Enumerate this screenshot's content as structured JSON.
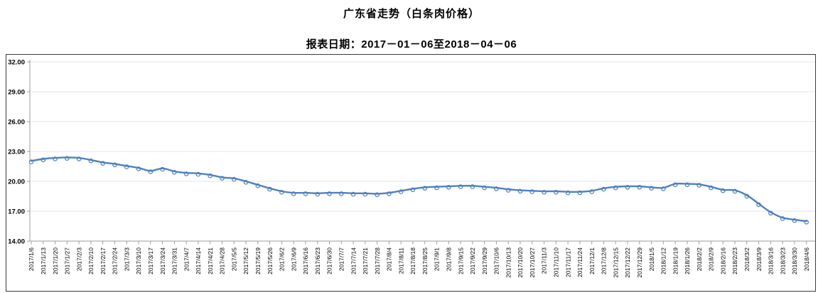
{
  "title": "广东省走势（白条肉价格）",
  "subtitle": "报表日期：2017－01－06至2018－04－06",
  "colors": {
    "line": "#4f81bd",
    "marker_fill": "#ffffff",
    "grid": "#dde6f1",
    "axis": "#9e9e9e",
    "border": "#3c3c3c",
    "text": "#000000"
  },
  "chart_data": {
    "type": "line",
    "title": "广东省走势（白条肉价格）",
    "subtitle": "报表日期：2017－01－06至2018－04－06",
    "xlabel": "",
    "ylabel": "",
    "ylim": [
      14,
      32
    ],
    "ytick_step": 3,
    "yticks": [
      "32.00",
      "29.00",
      "26.00",
      "23.00",
      "20.00",
      "17.00",
      "14.00"
    ],
    "grid": true,
    "legend": "none",
    "marker": "open-circle",
    "smooth": true,
    "x": [
      "2017/1/6",
      "2017/1/13",
      "2017/1/20",
      "2017/1/27",
      "2017/2/3",
      "2017/2/10",
      "2017/2/17",
      "2017/2/24",
      "2017/3/3",
      "2017/3/10",
      "2017/3/17",
      "2017/3/24",
      "2017/3/31",
      "2017/4/7",
      "2017/4/14",
      "2017/4/21",
      "2017/4/28",
      "2017/5/5",
      "2017/5/12",
      "2017/5/19",
      "2017/5/26",
      "2017/6/2",
      "2017/6/9",
      "2017/6/16",
      "2017/6/23",
      "2017/6/30",
      "2017/7/7",
      "2017/7/14",
      "2017/7/21",
      "2017/7/28",
      "2017/8/4",
      "2017/8/11",
      "2017/8/18",
      "2017/8/25",
      "2017/9/1",
      "2017/9/8",
      "2017/9/15",
      "2017/9/22",
      "2017/9/29",
      "2017/10/6",
      "2017/10/13",
      "2017/10/20",
      "2017/10/27",
      "2017/11/3",
      "2017/11/10",
      "2017/11/17",
      "2017/11/24",
      "2017/12/1",
      "2017/12/8",
      "2017/12/15",
      "2017/12/22",
      "2017/12/29",
      "2018/1/5",
      "2018/1/12",
      "2018/1/19",
      "2018/1/26",
      "2018/2/2",
      "2018/2/9",
      "2018/2/16",
      "2018/2/23",
      "2018/3/2",
      "2018/3/9",
      "2018/3/16",
      "2018/3/23",
      "2018/3/30",
      "2018/4/6"
    ],
    "values": [
      22.05,
      22.25,
      22.35,
      22.4,
      22.35,
      22.15,
      21.9,
      21.75,
      21.55,
      21.35,
      21.05,
      21.3,
      21.0,
      20.85,
      20.8,
      20.65,
      20.4,
      20.3,
      20.0,
      19.65,
      19.3,
      19.0,
      18.85,
      18.85,
      18.8,
      18.85,
      18.85,
      18.8,
      18.8,
      18.75,
      18.85,
      19.05,
      19.25,
      19.4,
      19.45,
      19.5,
      19.55,
      19.55,
      19.45,
      19.35,
      19.2,
      19.1,
      19.05,
      19.0,
      19.0,
      18.95,
      18.95,
      19.05,
      19.3,
      19.45,
      19.5,
      19.5,
      19.4,
      19.35,
      19.75,
      19.75,
      19.7,
      19.45,
      19.15,
      19.1,
      18.6,
      17.75,
      16.9,
      16.35,
      16.15,
      16.0
    ]
  }
}
